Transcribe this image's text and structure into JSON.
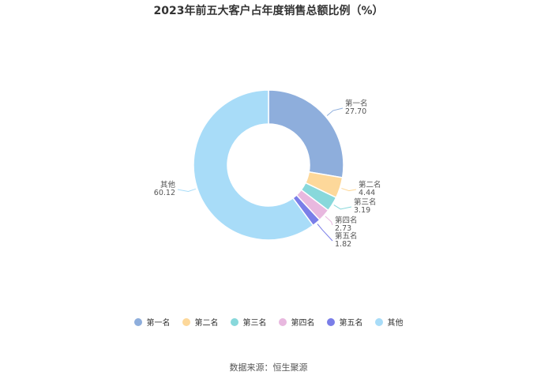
{
  "chart_data": {
    "type": "pie",
    "title": "2023年前五大客户占年度销售总额比例（%）",
    "categories": [
      "第一名",
      "第二名",
      "第三名",
      "第四名",
      "第五名",
      "其他"
    ],
    "values": [
      27.7,
      4.44,
      3.19,
      2.73,
      1.82,
      60.12
    ],
    "value_labels": [
      "27.70",
      "4.44",
      "3.19",
      "2.73",
      "1.82",
      "60.12"
    ],
    "colors": [
      "#8eaedc",
      "#fdd89a",
      "#88d8db",
      "#e8b8df",
      "#7a7ee8",
      "#a8dcf8"
    ],
    "legend_position": "bottom"
  },
  "source": "数据来源：恒生聚源"
}
